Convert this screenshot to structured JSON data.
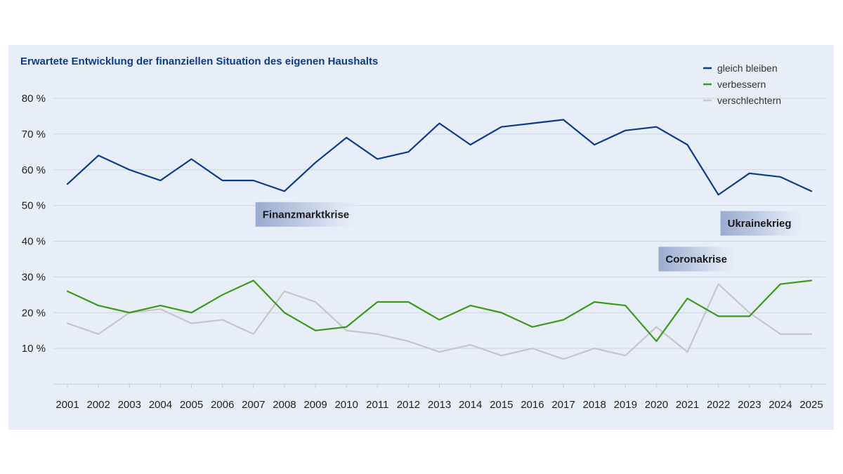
{
  "chart_data": {
    "type": "line",
    "title": "Erwartete Entwicklung der finanziellen Situation des eigenen Haushalts",
    "categories": [
      "2001",
      "2002",
      "2003",
      "2004",
      "2005",
      "2006",
      "2007",
      "2008",
      "2009",
      "2010",
      "2011",
      "2012",
      "2013",
      "2014",
      "2015",
      "2016",
      "2017",
      "2018",
      "2019",
      "2020",
      "2021",
      "2022",
      "2023",
      "2024",
      "2025"
    ],
    "series": [
      {
        "name": "gleich bleiben",
        "color": "#0b3c8c",
        "values": [
          56,
          64,
          60,
          57,
          63,
          57,
          57,
          54,
          62,
          69,
          63,
          65,
          73,
          67,
          72,
          73,
          74,
          67,
          71,
          72,
          67,
          53,
          59,
          58,
          54
        ]
      },
      {
        "name": "verbessern",
        "color": "#3a9a1a",
        "values": [
          26,
          22,
          20,
          22,
          20,
          25,
          29,
          20,
          15,
          16,
          23,
          23,
          18,
          22,
          20,
          16,
          18,
          23,
          22,
          12,
          24,
          19,
          19,
          28,
          29
        ]
      },
      {
        "name": "verschlechtern",
        "color": "#c4c6c9",
        "values": [
          17,
          14,
          20,
          21,
          17,
          18,
          14,
          26,
          23,
          15,
          14,
          12,
          9,
          11,
          8,
          10,
          7,
          10,
          8,
          16,
          9,
          28,
          20,
          14,
          14
        ]
      }
    ],
    "yticks": [
      "10 %",
      "20 %",
      "30 %",
      "40 %",
      "50 %",
      "60 %",
      "70 %",
      "80 %"
    ],
    "ytick_values": [
      10,
      20,
      30,
      40,
      50,
      60,
      70,
      80
    ],
    "ylim": [
      0,
      80
    ],
    "grid": true,
    "legend_position": "top-right",
    "annotations": [
      {
        "text": "Finanzmarktkrise",
        "year": "2007",
        "y": 47.5
      },
      {
        "text": "Coronakrise",
        "year": "2020",
        "y": 35
      },
      {
        "text": "Ukrainekrieg",
        "year": "2022",
        "y": 45
      }
    ]
  }
}
